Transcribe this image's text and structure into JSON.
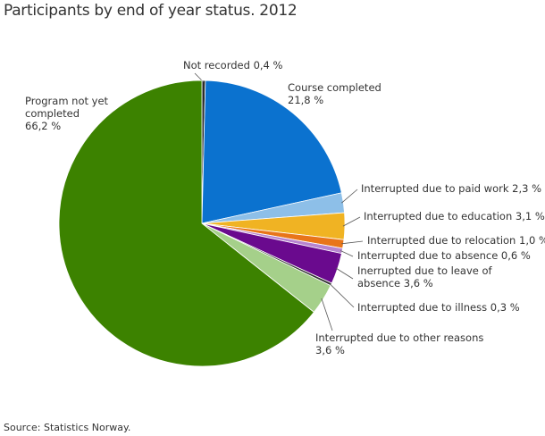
{
  "title": "Participants by end of year status. 2012",
  "source": "Source: Statistics Norway.",
  "chart_data": {
    "type": "pie",
    "title": "Participants by end of year status. 2012",
    "unit": "%",
    "slices": [
      {
        "name": "Not recorded",
        "value": 0.4,
        "color": "#2b2b2b",
        "label": [
          "Not recorded 0,4 %"
        ]
      },
      {
        "name": "Course completed",
        "value": 21.8,
        "color": "#0b72cf",
        "label": [
          "Course completed",
          "21,8 %"
        ]
      },
      {
        "name": "Interrupted due to paid work",
        "value": 2.3,
        "color": "#8dbfe8",
        "label": [
          "Interrupted due to paid work 2,3 %"
        ]
      },
      {
        "name": "Interrupted due to education",
        "value": 3.1,
        "color": "#f0b323",
        "label": [
          "Interrupted due to education 3,1 %"
        ]
      },
      {
        "name": "Interrupted due to relocation",
        "value": 1.0,
        "color": "#e8751a",
        "label": [
          "Interrupted due to relocation 1,0 %"
        ]
      },
      {
        "name": "Interrupted due to absence",
        "value": 0.6,
        "color": "#b784d0",
        "label": [
          "Interrupted due to absence 0,6 %"
        ]
      },
      {
        "name": "Inerrupted due to leave of absence",
        "value": 3.6,
        "color": "#6a0a8e",
        "label": [
          "Inerrupted due to leave of",
          "absence 3,6 %"
        ]
      },
      {
        "name": "Interrupted due to illness",
        "value": 0.3,
        "color": "#333333",
        "label": [
          "Interrupted due to illness 0,3 %"
        ]
      },
      {
        "name": "Interrupted due to other reasons",
        "value": 3.6,
        "color": "#a5d08a",
        "label": [
          "Interrupted due to other reasons",
          "3,6 %"
        ]
      },
      {
        "name": "Program not yet completed",
        "value": 66.2,
        "color": "#3c8200",
        "label": [
          "Program not yet",
          "completed",
          "66,2 %"
        ]
      }
    ]
  }
}
